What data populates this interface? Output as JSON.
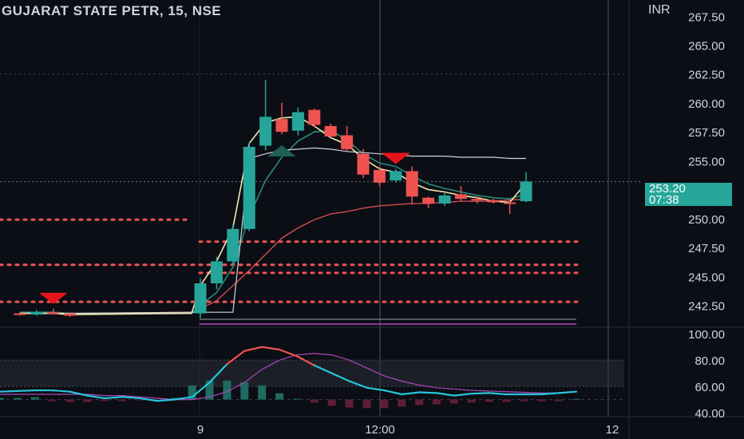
{
  "header": {
    "title": "GUJARAT STATE PETR, 15, NSE",
    "currency": "INR"
  },
  "price_tag": {
    "price": "253.20",
    "countdown": "07:38"
  },
  "colors": {
    "background": "#0c0e15",
    "up": "#26a69a",
    "down": "#ef5350",
    "ema_fast": "#f3e9b0",
    "ema_mid": "#2a8a7d",
    "ema_slow": "#e05252",
    "baseline": "#d1d4dc",
    "pivot_levels": "#ef5350",
    "rsi": "#26c6da",
    "rsi_signal": "#ab47bc",
    "rsi_band": "#2a2e39",
    "axis_text": "#d1d4dc"
  },
  "chart_data": [
    {
      "type": "candlestick",
      "title": "GUJARAT STATE PETR, 15, NSE",
      "ylabel": "INR",
      "ylim": [
        240.6,
        268.9
      ],
      "yticks": [
        "267.50",
        "265.00",
        "262.50",
        "260.00",
        "257.50",
        "255.00",
        "250.00",
        "247.50",
        "245.00",
        "242.50"
      ],
      "xticks": [
        "9",
        "12:00",
        "12"
      ],
      "last_price": 253.2,
      "candles": [
        {
          "o": 241.8,
          "h": 241.9,
          "l": 241.6,
          "c": 241.7
        },
        {
          "o": 241.7,
          "h": 242.1,
          "l": 241.6,
          "c": 241.9
        },
        {
          "o": 241.9,
          "h": 242.2,
          "l": 241.7,
          "c": 241.8
        },
        {
          "o": 241.8,
          "h": 241.9,
          "l": 241.5,
          "c": 241.6
        },
        {
          "o": 241.8,
          "h": 244.8,
          "l": 241.4,
          "c": 244.4
        },
        {
          "o": 244.4,
          "h": 246.7,
          "l": 243.9,
          "c": 246.3
        },
        {
          "o": 246.3,
          "h": 249.5,
          "l": 246.0,
          "c": 249.1
        },
        {
          "o": 249.1,
          "h": 256.6,
          "l": 248.9,
          "c": 256.2
        },
        {
          "o": 256.3,
          "h": 262.0,
          "l": 255.9,
          "c": 258.8
        },
        {
          "o": 258.6,
          "h": 260.0,
          "l": 257.3,
          "c": 257.5
        },
        {
          "o": 257.6,
          "h": 259.6,
          "l": 257.2,
          "c": 259.2
        },
        {
          "o": 259.4,
          "h": 259.5,
          "l": 257.9,
          "c": 258.1
        },
        {
          "o": 258.0,
          "h": 258.2,
          "l": 257.0,
          "c": 257.1
        },
        {
          "o": 257.2,
          "h": 258.0,
          "l": 255.8,
          "c": 256.0
        },
        {
          "o": 255.6,
          "h": 256.0,
          "l": 253.5,
          "c": 253.8
        },
        {
          "o": 254.2,
          "h": 254.5,
          "l": 252.8,
          "c": 253.1
        },
        {
          "o": 253.3,
          "h": 254.3,
          "l": 253.1,
          "c": 254.1
        },
        {
          "o": 254.1,
          "h": 254.5,
          "l": 251.2,
          "c": 251.9
        },
        {
          "o": 251.8,
          "h": 251.9,
          "l": 250.9,
          "c": 251.3
        },
        {
          "o": 251.3,
          "h": 252.2,
          "l": 251.1,
          "c": 252.0
        },
        {
          "o": 252.1,
          "h": 252.8,
          "l": 251.5,
          "c": 251.7
        },
        {
          "o": 251.7,
          "h": 251.9,
          "l": 251.3,
          "c": 251.6
        },
        {
          "o": 251.6,
          "h": 251.7,
          "l": 251.3,
          "c": 251.4
        },
        {
          "o": 251.4,
          "h": 251.6,
          "l": 250.4,
          "c": 251.3
        },
        {
          "o": 251.5,
          "h": 254.0,
          "l": 251.4,
          "c": 253.2
        }
      ],
      "ema_fast": [
        241.8,
        241.8,
        241.8,
        241.7,
        241.8,
        244.2,
        246.3,
        249.2,
        256.5,
        258.3,
        258.7,
        258.8,
        258.0,
        257.0,
        256.4,
        255.2,
        254.3,
        254.0,
        253.1,
        252.5,
        252.3,
        252.0,
        251.8,
        251.5,
        251.4,
        253.1
      ],
      "ema_mid": [
        241.9,
        241.9,
        241.9,
        241.8,
        241.8,
        242.5,
        243.6,
        245.8,
        250.2,
        253.3,
        255.3,
        256.7,
        257.5,
        257.6,
        256.8,
        255.6,
        254.8,
        254.5,
        253.7,
        253.0,
        252.6,
        252.3,
        252.0,
        251.8,
        251.7,
        252.1
      ],
      "ema_slow": [
        241.8,
        241.8,
        241.8,
        241.8,
        241.9,
        242.2,
        242.9,
        244.2,
        245.5,
        246.9,
        248.3,
        249.2,
        249.9,
        250.4,
        250.6,
        250.9,
        251.1,
        251.2,
        251.3,
        251.3,
        251.4,
        251.5,
        251.5,
        251.5,
        251.6,
        251.7
      ],
      "baseline": [
        241.8,
        241.8,
        241.8,
        241.8,
        241.9,
        241.9,
        241.9,
        241.9,
        255.2,
        255.6,
        255.9,
        256.0,
        256.1,
        256.0,
        255.8,
        255.7,
        255.6,
        255.5,
        255.4,
        255.4,
        255.4,
        255.3,
        255.3,
        255.3,
        255.2,
        255.2
      ],
      "pivot_levels": [
        {
          "value": 249.9,
          "segment": "left"
        },
        {
          "value": 248.0,
          "segment": "right"
        },
        {
          "value": 246.0,
          "segment": "full"
        },
        {
          "value": 245.3,
          "segment": "right"
        },
        {
          "value": 242.8,
          "segment": "full"
        }
      ],
      "signals": [
        {
          "type": "sell",
          "index": 2
        },
        {
          "type": "buy",
          "index": 9
        },
        {
          "type": "sell",
          "index": 16
        }
      ]
    },
    {
      "type": "oscillator",
      "ylim": [
        37,
        105
      ],
      "yticks": [
        "100.00",
        "80.00",
        "60.00",
        "40.00"
      ],
      "band": [
        60,
        80
      ],
      "rsi": [
        56,
        56.5,
        57,
        57,
        56,
        53,
        51,
        52,
        51,
        49,
        50,
        52,
        63,
        77,
        87,
        90,
        88,
        83,
        76,
        70,
        64,
        59,
        57,
        54,
        55.5,
        55,
        53,
        54.5,
        55,
        54,
        54,
        54,
        55,
        56
      ],
      "signal": [
        54,
        54,
        54,
        54,
        54,
        54,
        53,
        53,
        52,
        51,
        50,
        50,
        52,
        56,
        63,
        73,
        80,
        84,
        85,
        84,
        80,
        74,
        68,
        64,
        61,
        59,
        58,
        57,
        56.5,
        56,
        55.5,
        55,
        55,
        56
      ],
      "histogram": [
        2,
        2,
        3,
        -2,
        -3,
        -3,
        -2,
        -2,
        -1,
        0,
        2,
        18,
        24,
        24,
        22,
        18,
        8,
        1,
        -4,
        -8,
        -10,
        -11,
        -11,
        -9,
        -7,
        -6,
        -5,
        -4,
        -3,
        -3,
        -2,
        -2,
        -2,
        1
      ]
    }
  ]
}
